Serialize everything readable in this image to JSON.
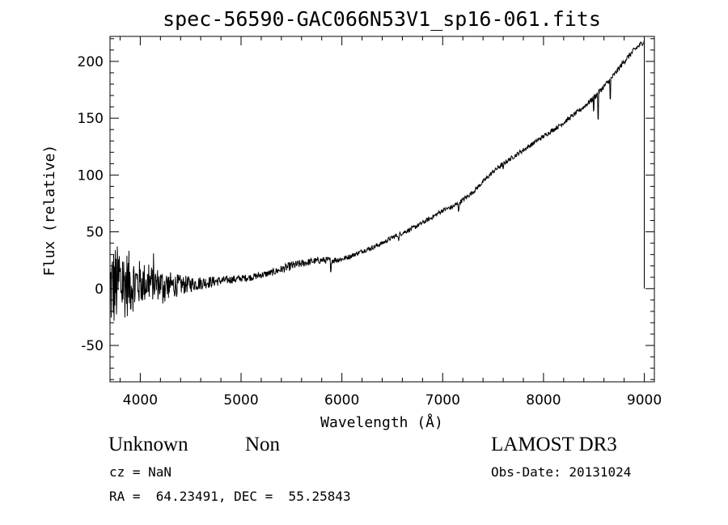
{
  "chart_data": {
    "type": "line",
    "title": "spec-56590-GAC066N53V1_sp16-061.fits",
    "xlabel": "Wavelength (Å)",
    "ylabel": "Flux (relative)",
    "xlim": [
      3700,
      9100
    ],
    "ylim": [
      -82,
      222
    ],
    "xticks": [
      4000,
      5000,
      6000,
      7000,
      8000,
      9000
    ],
    "yticks": [
      -50,
      0,
      50,
      100,
      150,
      200
    ],
    "series": [
      {
        "name": "spectrum",
        "x": [
          3700,
          3750,
          3800,
          3900,
          4000,
          4100,
          4200,
          4300,
          4400,
          4500,
          4600,
          4700,
          4800,
          4900,
          5000,
          5100,
          5200,
          5300,
          5400,
          5500,
          5600,
          5700,
          5800,
          5900,
          6000,
          6100,
          6200,
          6300,
          6400,
          6500,
          6600,
          6700,
          6800,
          6900,
          7000,
          7100,
          7200,
          7300,
          7400,
          7500,
          7600,
          7700,
          7800,
          7900,
          8000,
          8100,
          8200,
          8300,
          8400,
          8500,
          8600,
          8700,
          8800,
          8900,
          9000
        ],
        "y": [
          0,
          2,
          4,
          5,
          5,
          5,
          4,
          3,
          3,
          4,
          5,
          6,
          7,
          8,
          9,
          10,
          12,
          14,
          17,
          20,
          22,
          24,
          25,
          25,
          26,
          29,
          33,
          36,
          40,
          45,
          49,
          53,
          58,
          63,
          69,
          72,
          78,
          85,
          94,
          103,
          110,
          116,
          122,
          128,
          134,
          140,
          146,
          153,
          160,
          168,
          178,
          188,
          200,
          210,
          218
        ],
        "noise": [
          40,
          38,
          34,
          28,
          20,
          16,
          14,
          12,
          9,
          7,
          6,
          5,
          4,
          3.5,
          3,
          3,
          3,
          3,
          3.5,
          4,
          3.5,
          3,
          3,
          3,
          2.5,
          2,
          2,
          2,
          2,
          2,
          2,
          2,
          2,
          2,
          2,
          2,
          2,
          2,
          2,
          2,
          2,
          2,
          2,
          2,
          2,
          2,
          2,
          2,
          2,
          2.5,
          2.5,
          2.5,
          2.5,
          2.5,
          2.5
        ]
      }
    ]
  },
  "info": {
    "object_class": "Unknown",
    "subclass": "Non",
    "survey": "LAMOST DR3",
    "cz": "cz = NaN",
    "obs_date": "Obs-Date: 20131024",
    "coords": "RA =  64.23491, DEC =  55.25843"
  }
}
